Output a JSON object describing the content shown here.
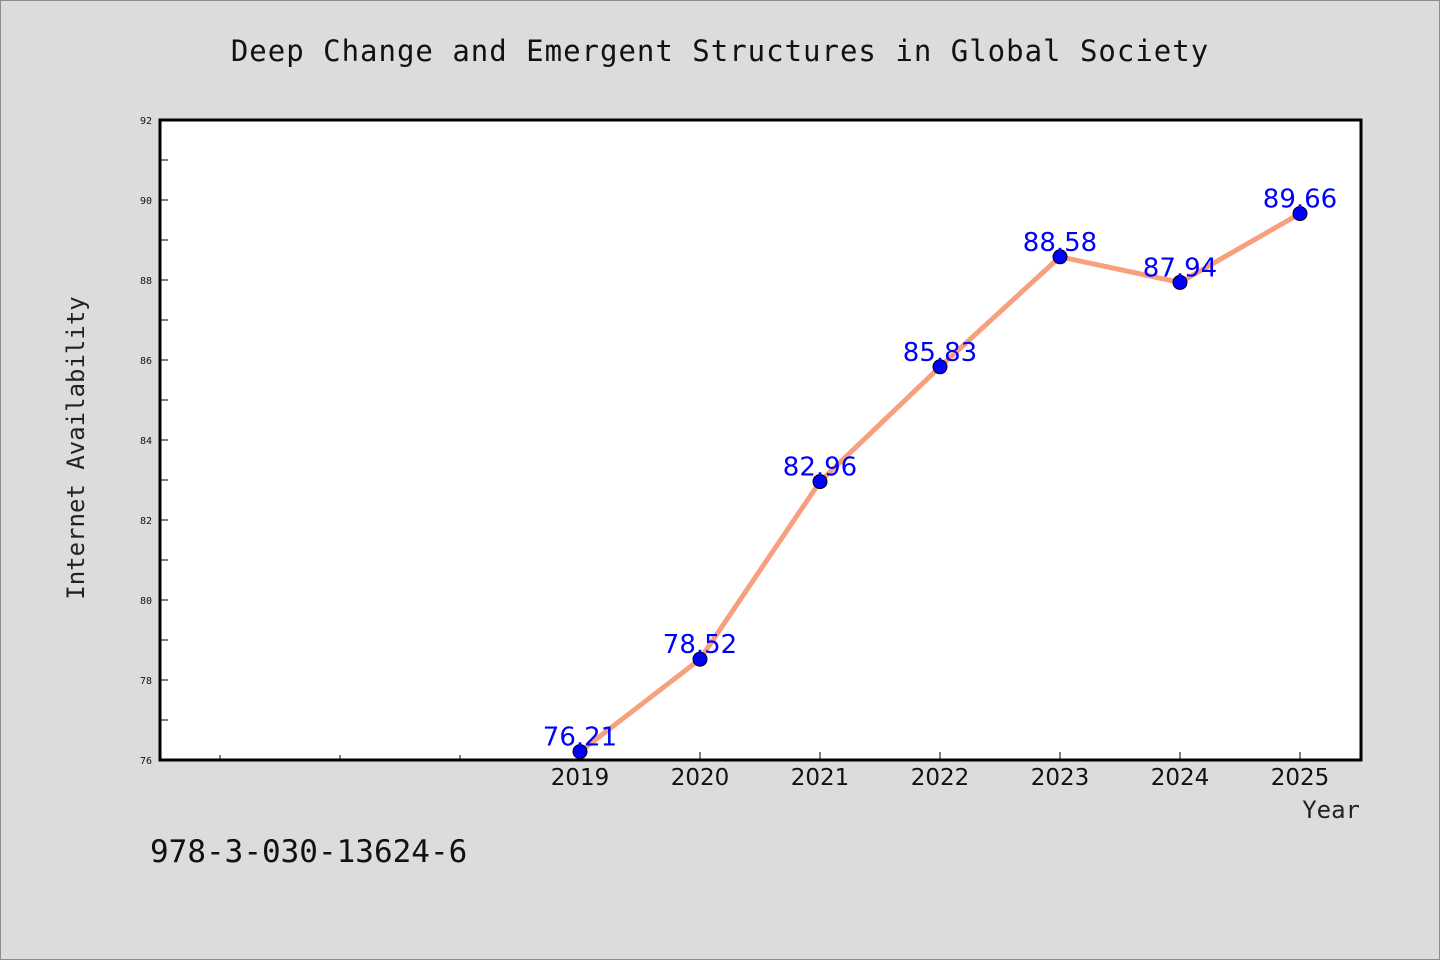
{
  "page": {
    "isbn": "978-3-030-13624-6"
  },
  "chart_data": {
    "type": "line",
    "title": "Deep Change and Emergent Structures in Global Society",
    "xlabel": "Year",
    "ylabel": "Internet Availability",
    "categories": [
      "2019",
      "2020",
      "2021",
      "2022",
      "2023",
      "2024",
      "2025"
    ],
    "series": [
      {
        "values": [
          76.21,
          78.52,
          82.96,
          85.83,
          88.58,
          87.94,
          89.66
        ],
        "line_color": "#f7a07e",
        "marker_color": "#0000ff"
      }
    ],
    "data_labels": [
      "76.21",
      "78.52",
      "82.96",
      "85.83",
      "88.58",
      "87.94",
      "89.66"
    ],
    "ylim": [
      76,
      92
    ],
    "yticks": [
      "76",
      "78",
      "80",
      "82",
      "84",
      "86",
      "88",
      "90",
      "92"
    ],
    "grid": false,
    "legend": "none",
    "background": "#dcdcdc",
    "plot_background": "#ffffff"
  }
}
